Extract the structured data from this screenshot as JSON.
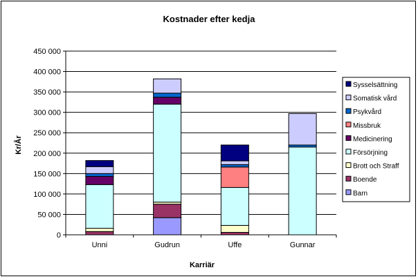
{
  "chart_data": {
    "type": "bar",
    "stacked": true,
    "title": "Kostnader efter kedja",
    "xlabel": "Karriär",
    "ylabel": "Kr/År",
    "ylim": [
      0,
      450000
    ],
    "yticks": [
      0,
      50000,
      100000,
      150000,
      200000,
      250000,
      300000,
      350000,
      400000,
      450000
    ],
    "ytick_labels": [
      "0",
      "50 000",
      "100 000",
      "150 000",
      "200 000",
      "250 000",
      "300 000",
      "350 000",
      "400 000",
      "450 000"
    ],
    "grid": true,
    "legend_position": "right",
    "categories": [
      "Unni",
      "Gudrun",
      "Uffe",
      "Gunnar"
    ],
    "series": [
      {
        "name": "Barn",
        "color": "#9999ff",
        "values": [
          0,
          42000,
          0,
          0
        ]
      },
      {
        "name": "Boende",
        "color": "#993366",
        "values": [
          8000,
          33000,
          6000,
          0
        ]
      },
      {
        "name": "Brott och Straff",
        "color": "#ffffcc",
        "values": [
          8000,
          5000,
          17000,
          0
        ]
      },
      {
        "name": "Försörjning",
        "color": "#ccffff",
        "values": [
          107000,
          240000,
          93000,
          215000
        ]
      },
      {
        "name": "Medicinering",
        "color": "#660066",
        "values": [
          20000,
          17000,
          0,
          0
        ]
      },
      {
        "name": "Missbruk",
        "color": "#ff8080",
        "values": [
          0,
          0,
          50000,
          0
        ]
      },
      {
        "name": "Psykvård",
        "color": "#0066cc",
        "values": [
          7000,
          10000,
          6000,
          5000
        ]
      },
      {
        "name": "Somatisk vård",
        "color": "#ccccff",
        "values": [
          17000,
          35000,
          9000,
          77000
        ]
      },
      {
        "name": "Sysselsättning",
        "color": "#000080",
        "values": [
          15000,
          0,
          39000,
          0
        ]
      }
    ]
  }
}
